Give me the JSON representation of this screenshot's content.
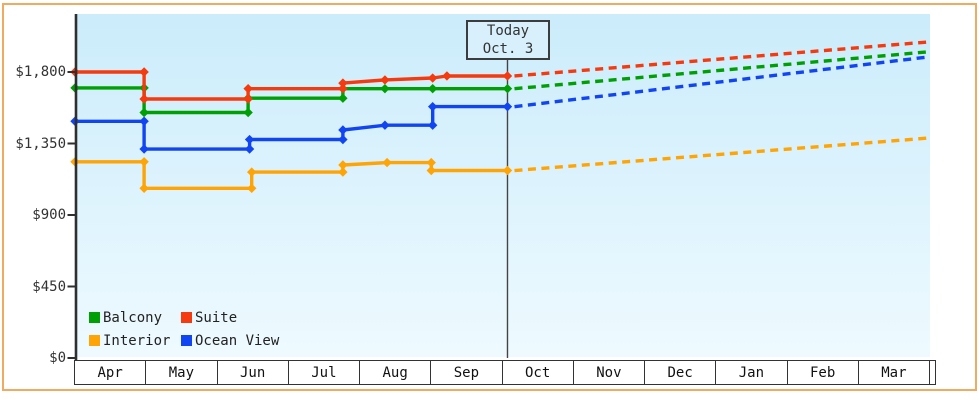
{
  "frame": {
    "border_color": "#f0ab63"
  },
  "chart_data": {
    "type": "line",
    "title": "",
    "today": {
      "label_lines": [
        "Today",
        "Oct. 3"
      ],
      "month_position": 6.07
    },
    "x_axis": {
      "months": [
        "Apr",
        "May",
        "Jun",
        "Jul",
        "Aug",
        "Sep",
        "Oct",
        "Nov",
        "Dec",
        "Jan",
        "Feb",
        "Mar"
      ]
    },
    "y_axis": {
      "ticks": [
        {
          "value": 1800,
          "label": "$1,800"
        },
        {
          "value": 1350,
          "label": "$1,350"
        },
        {
          "value": 900,
          "label": "$900"
        },
        {
          "value": 450,
          "label": "$450"
        },
        {
          "value": 0,
          "label": "$0"
        }
      ],
      "range": [
        0,
        2165
      ]
    },
    "legend": {
      "position": "bottom-left",
      "entries": [
        "Balcony",
        "Suite",
        "Interior",
        "Ocean View"
      ]
    },
    "series": [
      {
        "name": "Balcony",
        "color": "#00a005",
        "history": [
          [
            0,
            1700
          ],
          [
            0.97,
            1700
          ],
          [
            0.97,
            1545
          ],
          [
            2.43,
            1545
          ],
          [
            2.43,
            1635
          ],
          [
            3.76,
            1635
          ],
          [
            3.76,
            1695
          ],
          [
            4.35,
            1695
          ],
          [
            5.02,
            1695
          ],
          [
            6.07,
            1695
          ]
        ],
        "forecast": [
          [
            6.07,
            1695
          ],
          [
            12,
            1928
          ]
        ]
      },
      {
        "name": "Suite",
        "color": "#f43a0e",
        "history": [
          [
            0,
            1800
          ],
          [
            0.97,
            1800
          ],
          [
            0.97,
            1630
          ],
          [
            2.43,
            1630
          ],
          [
            2.43,
            1695
          ],
          [
            3.76,
            1695
          ],
          [
            3.76,
            1730
          ],
          [
            4.35,
            1750
          ],
          [
            5.02,
            1762
          ],
          [
            5.22,
            1775
          ],
          [
            6.07,
            1775
          ]
        ],
        "forecast": [
          [
            6.07,
            1775
          ],
          [
            12,
            1990
          ]
        ]
      },
      {
        "name": "Interior",
        "color": "#ffa405",
        "history": [
          [
            0,
            1235
          ],
          [
            0.97,
            1235
          ],
          [
            0.97,
            1068
          ],
          [
            2.48,
            1068
          ],
          [
            2.48,
            1170
          ],
          [
            3.76,
            1170
          ],
          [
            3.76,
            1215
          ],
          [
            4.38,
            1230
          ],
          [
            5.0,
            1230
          ],
          [
            5.0,
            1180
          ],
          [
            6.07,
            1180
          ]
        ],
        "forecast": [
          [
            6.07,
            1180
          ],
          [
            12,
            1385
          ]
        ]
      },
      {
        "name": "Ocean View",
        "color": "#1245f2",
        "history": [
          [
            0,
            1490
          ],
          [
            0.97,
            1490
          ],
          [
            0.97,
            1315
          ],
          [
            2.45,
            1315
          ],
          [
            2.45,
            1375
          ],
          [
            3.76,
            1375
          ],
          [
            3.76,
            1435
          ],
          [
            4.35,
            1465
          ],
          [
            5.02,
            1465
          ],
          [
            5.02,
            1582
          ],
          [
            6.07,
            1582
          ]
        ],
        "forecast": [
          [
            6.07,
            1582
          ],
          [
            12,
            1896
          ]
        ]
      }
    ]
  }
}
